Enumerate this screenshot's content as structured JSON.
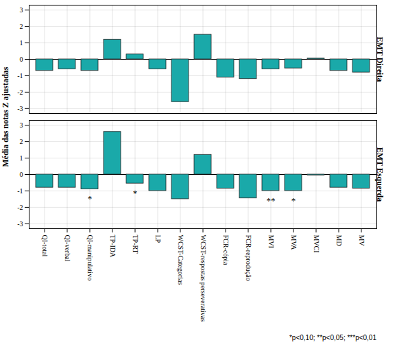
{
  "chart_data": {
    "type": "bar",
    "ylabel": "Média das notas Z ajustadas",
    "note": "*p<0,10; **p<0,05; ***p<0,01",
    "color": "#1aa9a9",
    "grid": true,
    "ylim": [
      -3.3,
      3.3
    ],
    "yticks": [
      -3,
      -2,
      -1,
      0,
      1,
      2,
      3
    ],
    "categories": [
      "QI-total",
      "QI-verbal",
      "QI-manipulativo",
      "TP-IDA",
      "TP-RT",
      "LP",
      "WCST-Categorias",
      "WCST-respostas perseverativas",
      "FCR-cópia",
      "FCR-reprodução",
      "MVI",
      "MVA",
      "MVCI",
      "MD",
      "MV"
    ],
    "panels": [
      {
        "title": "EMT Direita",
        "values": [
          -0.7,
          -0.6,
          -0.7,
          1.2,
          0.3,
          -0.6,
          -2.6,
          1.5,
          -1.1,
          -1.2,
          -0.6,
          -0.55,
          0.05,
          -0.7,
          -0.8
        ],
        "significance": [
          null,
          null,
          null,
          null,
          null,
          null,
          null,
          null,
          null,
          null,
          null,
          null,
          null,
          null,
          null
        ]
      },
      {
        "title": "EMT Esquerda",
        "values": [
          -0.8,
          -0.8,
          -0.9,
          2.6,
          -0.55,
          -1.0,
          -1.5,
          1.2,
          -0.85,
          -1.45,
          -1.0,
          -1.0,
          -0.05,
          -0.8,
          -0.85
        ],
        "significance": [
          null,
          null,
          "*",
          null,
          "*",
          null,
          null,
          null,
          null,
          null,
          "**",
          "*",
          null,
          null,
          null
        ]
      }
    ]
  }
}
